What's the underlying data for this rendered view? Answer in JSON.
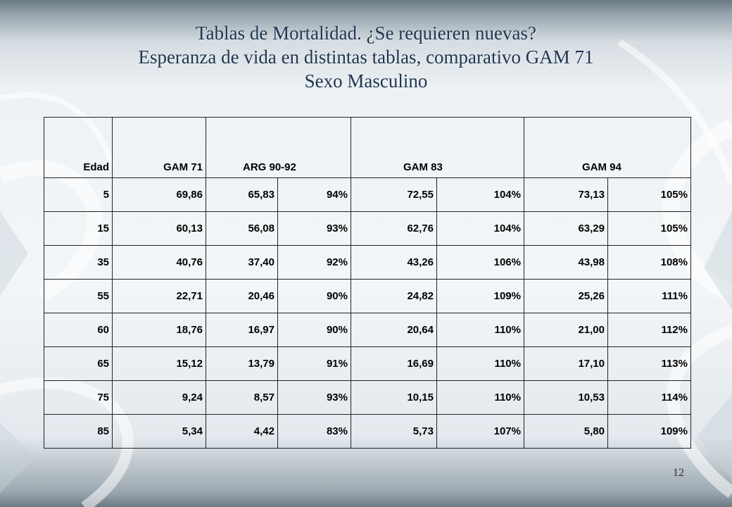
{
  "slide": {
    "title_line1": "Tablas de Mortalidad. ¿Se requieren nuevas?",
    "title_line2": "Esperanza de vida en distintas tablas, comparativo GAM 71",
    "title_line3": "Sexo Masculino",
    "page_number": "12"
  },
  "table": {
    "headers": [
      "Edad",
      "GAM 71",
      "ARG 90-92",
      "GAM 83",
      "GAM 94"
    ],
    "rows": [
      [
        "5",
        "69,86",
        "65,83",
        "94%",
        "72,55",
        "104%",
        "73,13",
        "105%"
      ],
      [
        "15",
        "60,13",
        "56,08",
        "93%",
        "62,76",
        "104%",
        "63,29",
        "105%"
      ],
      [
        "35",
        "40,76",
        "37,40",
        "92%",
        "43,26",
        "106%",
        "43,98",
        "108%"
      ],
      [
        "55",
        "22,71",
        "20,46",
        "90%",
        "24,82",
        "109%",
        "25,26",
        "111%"
      ],
      [
        "60",
        "18,76",
        "16,97",
        "90%",
        "20,64",
        "110%",
        "21,00",
        "112%"
      ],
      [
        "65",
        "15,12",
        "13,79",
        "91%",
        "16,69",
        "110%",
        "17,10",
        "113%"
      ],
      [
        "75",
        "9,24",
        "8,57",
        "93%",
        "10,15",
        "110%",
        "10,53",
        "114%"
      ],
      [
        "85",
        "5,34",
        "4,42",
        "83%",
        "5,73",
        "107%",
        "5,80",
        "109%"
      ]
    ]
  }
}
